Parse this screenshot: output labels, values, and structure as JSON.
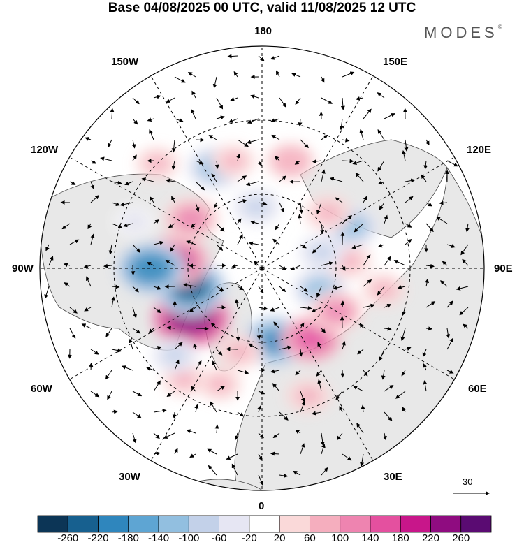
{
  "title": "Base 04/08/2025 00 UTC, valid 11/08/2025 12 UTC",
  "brand": "MODES",
  "brand_mark": "©",
  "longitude_labels": {
    "top": "180",
    "bottom": "0",
    "left": "90W",
    "right": "90E",
    "upper_left_outer": "150W",
    "upper_right_outer": "150E",
    "upper_left_inner": "120W",
    "upper_right_inner": "120E",
    "lower_left_inner": "60W",
    "lower_right_inner": "60E",
    "lower_left_outer": "30W",
    "lower_right_outer": "30E"
  },
  "wind_reference": {
    "value": "30"
  },
  "colorbar": {
    "colors": [
      "#0c3556",
      "#17608f",
      "#2f86bd",
      "#5ea5d3",
      "#92bfe0",
      "#c3d1e9",
      "#e6e6f3",
      "#ffffff",
      "#fad9d9",
      "#f5aebe",
      "#ee84b0",
      "#e4509f",
      "#c8168a",
      "#8f0c80",
      "#5a0b72"
    ],
    "tick_labels": [
      "-260",
      "-220",
      "-180",
      "-140",
      "-100",
      "-60",
      "-20",
      "20",
      "60",
      "100",
      "140",
      "180",
      "220",
      "260"
    ]
  },
  "anomalies": [
    {
      "lon": -55,
      "lat": 55,
      "value": 250
    },
    {
      "lon": -75,
      "lat": 60,
      "value": -220
    },
    {
      "lon": -95,
      "lat": 55,
      "value": 180
    },
    {
      "lon": -90,
      "lat": 45,
      "value": -200
    },
    {
      "lon": -125,
      "lat": 55,
      "value": 130
    },
    {
      "lon": 10,
      "lat": 60,
      "value": -180
    },
    {
      "lon": 35,
      "lat": 55,
      "value": 150
    },
    {
      "lon": 70,
      "lat": 65,
      "value": -120
    },
    {
      "lon": 60,
      "lat": 55,
      "value": 120
    },
    {
      "lon": 95,
      "lat": 55,
      "value": 80
    },
    {
      "lon": 105,
      "lat": 65,
      "value": -70
    },
    {
      "lon": 115,
      "lat": 50,
      "value": -120
    },
    {
      "lon": 130,
      "lat": 55,
      "value": 80
    },
    {
      "lon": 165,
      "lat": 45,
      "value": 90
    },
    {
      "lon": -175,
      "lat": 65,
      "value": -80
    },
    {
      "lon": -155,
      "lat": 45,
      "value": -130
    },
    {
      "lon": -165,
      "lat": 45,
      "value": 60
    },
    {
      "lon": -135,
      "lat": 30,
      "value": 60
    },
    {
      "lon": -35,
      "lat": 35,
      "value": 60
    },
    {
      "lon": -45,
      "lat": 40,
      "value": -70
    },
    {
      "lon": 20,
      "lat": 35,
      "value": 70
    },
    {
      "lon": -20,
      "lat": 40,
      "value": 60
    },
    {
      "lon": 80,
      "lat": 40,
      "value": 60
    },
    {
      "lon": -15,
      "lat": 55,
      "value": 70
    },
    {
      "lon": -110,
      "lat": 35,
      "value": -40
    }
  ]
}
